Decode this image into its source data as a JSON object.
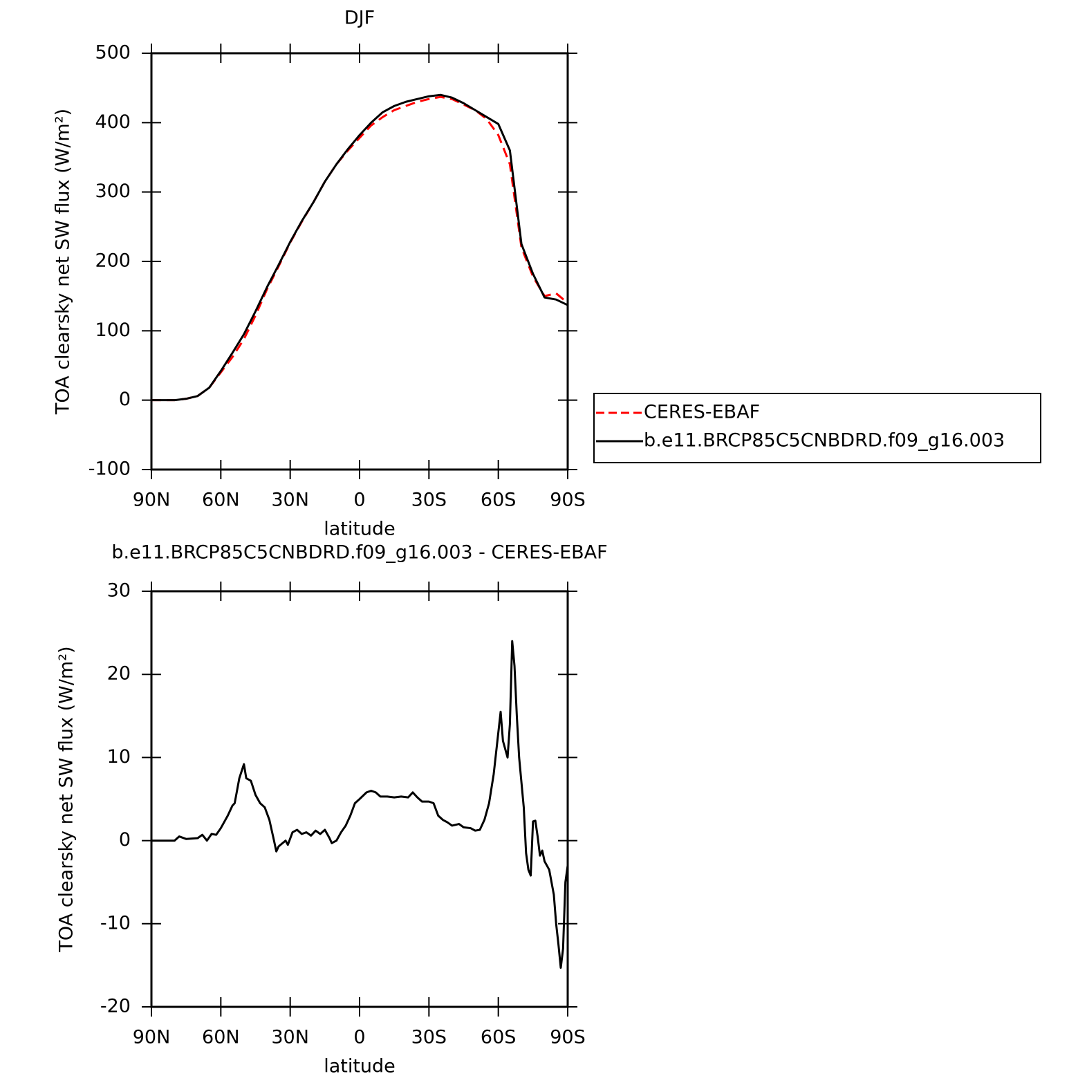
{
  "chart_data": [
    {
      "type": "line",
      "title": "DJF",
      "x_label": "latitude",
      "y_label": "TOA clearsky net SW flux (W/m²)",
      "x": [
        90,
        85,
        80,
        75,
        70,
        65,
        60,
        55,
        50,
        45,
        40,
        35,
        30,
        25,
        20,
        15,
        10,
        5,
        0,
        -5,
        -10,
        -15,
        -20,
        -25,
        -30,
        -35,
        -40,
        -45,
        -50,
        -55,
        -60,
        -65,
        -70,
        -75,
        -80,
        -85,
        -90
      ],
      "series": [
        {
          "name": "CERES-EBAF",
          "color": "#ff0000",
          "linestyle": "dashed",
          "values": [
            0,
            0,
            0,
            2,
            6,
            18,
            40,
            62,
            88,
            122,
            160,
            193,
            227,
            257,
            285,
            315,
            340,
            360,
            378,
            396,
            408,
            418,
            424,
            430,
            434,
            437,
            434,
            426,
            418,
            405,
            382,
            340,
            220,
            178,
            150,
            154,
            140
          ]
        },
        {
          "name": "b.e11.BRCP85C5CNBDRD.f09_g16.003",
          "color": "#000000",
          "linestyle": "solid",
          "values": [
            0,
            0,
            0,
            2,
            6,
            18,
            42,
            68,
            95,
            128,
            163,
            195,
            228,
            258,
            285,
            315,
            340,
            362,
            382,
            400,
            415,
            424,
            430,
            434,
            438,
            440,
            436,
            428,
            418,
            408,
            398,
            360,
            225,
            182,
            148,
            145,
            137
          ]
        }
      ],
      "xlim": [
        90,
        -90
      ],
      "xticks": [
        {
          "value": 90,
          "label": "90N"
        },
        {
          "value": 60,
          "label": "60N"
        },
        {
          "value": 30,
          "label": "30N"
        },
        0,
        {
          "value": -30,
          "label": "30S"
        },
        {
          "value": -60,
          "label": "60S"
        },
        {
          "value": -90,
          "label": "90S"
        }
      ],
      "ylim": [
        -100,
        500
      ],
      "yticks": [
        -100,
        0,
        100,
        200,
        300,
        400,
        500
      ],
      "legend": "right"
    },
    {
      "type": "line",
      "title": "b.e11.BRCP85C5CNBDRD.f09_g16.003 - CERES-EBAF",
      "x_label": "latitude",
      "y_label": "TOA clearsky net SW flux (W/m²)",
      "x": [
        90,
        80,
        78,
        75,
        70,
        68,
        66,
        64,
        62,
        60,
        57,
        55,
        54,
        52,
        50,
        49,
        47,
        45,
        43,
        41,
        39,
        37,
        36,
        35,
        32,
        31,
        29,
        27,
        25,
        23,
        21,
        19,
        17,
        15,
        13,
        12,
        10,
        8,
        6,
        4,
        2,
        0,
        -3,
        -5,
        -7,
        -9,
        -12,
        -15,
        -18,
        -21,
        -23,
        -25,
        -27,
        -30,
        -32,
        -34,
        -36,
        -38,
        -40,
        -43,
        -45,
        -48,
        -50,
        -52,
        -54,
        -56,
        -58,
        -60,
        -61,
        -62,
        -64,
        -65,
        -66,
        -67,
        -68,
        -69,
        -71,
        -72,
        -73,
        -74,
        -75,
        -76,
        -77,
        -78,
        -79,
        -80,
        -82,
        -83,
        -84,
        -85,
        -86,
        -87,
        -88,
        -89,
        -90
      ],
      "values": [
        0,
        0,
        0.5,
        0.2,
        0.3,
        0.7,
        0,
        0.8,
        0.7,
        1.5,
        3,
        4.2,
        4.5,
        7.5,
        9.2,
        7.5,
        7.2,
        5.5,
        4.5,
        4,
        2.5,
        0,
        -1.3,
        -0.7,
        0,
        -0.5,
        1,
        1.3,
        0.8,
        1,
        0.6,
        1.2,
        0.8,
        1.3,
        0.3,
        -0.3,
        0,
        1,
        1.8,
        3,
        4.5,
        5,
        5.8,
        6,
        5.8,
        5.3,
        5.3,
        5.2,
        5.3,
        5.2,
        5.8,
        5.2,
        4.7,
        4.7,
        4.5,
        3,
        2.5,
        2.2,
        1.8,
        2,
        1.6,
        1.5,
        1.2,
        1.3,
        2.5,
        4.5,
        8,
        13,
        15.5,
        12,
        10,
        14,
        24,
        21,
        15,
        10,
        4,
        -1.5,
        -3.5,
        -4.2,
        2.3,
        2.4,
        0.5,
        -1.8,
        -1.2,
        -2.5,
        -3.5,
        -5,
        -6.5,
        -10,
        -12.5,
        -15.3,
        -13,
        -5,
        -3
      ],
      "color": "#000000",
      "xlim": [
        90,
        -90
      ],
      "xticks": [
        {
          "value": 90,
          "label": "90N"
        },
        {
          "value": 60,
          "label": "60N"
        },
        {
          "value": 30,
          "label": "30N"
        },
        0,
        {
          "value": -30,
          "label": "30S"
        },
        {
          "value": -60,
          "label": "60S"
        },
        {
          "value": -90,
          "label": "90S"
        }
      ],
      "ylim": [
        -20,
        30
      ],
      "yticks": [
        -20,
        -10,
        0,
        10,
        20,
        30
      ]
    }
  ]
}
